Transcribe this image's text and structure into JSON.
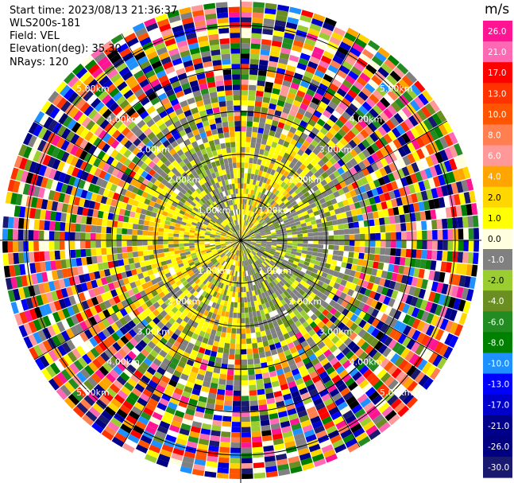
{
  "header": {
    "start_time": "Start time: 2023/08/13 21:36:37",
    "instrument": "WLS200s-181",
    "field": "Field: VEL",
    "elevation": "Elevation(deg): 35.30",
    "nrays": "NRays: 120"
  },
  "chart_data": {
    "type": "heatmap",
    "subtype": "ppi-polar",
    "field": "VEL",
    "units": "m/s",
    "nrays": 120,
    "range_rings_km": [
      1.0,
      2.0,
      3.0,
      4.0,
      5.0
    ],
    "ring_labels": [
      "1.00km",
      "2.00km",
      "3.00km",
      "4.00km",
      "5.00km"
    ],
    "max_range_km": 5.0,
    "colorbar": {
      "label": "m/s",
      "ticks": [
        "26.0",
        "21.0",
        "17.0",
        "13.0",
        "10.0",
        "8.0",
        "6.0",
        "4.0",
        "2.0",
        "1.0",
        "0.0",
        "-1.0",
        "-2.0",
        "-4.0",
        "-6.0",
        "-8.0",
        "-10.0",
        "-13.0",
        "-17.0",
        "-21.0",
        "-26.0",
        "-30.0"
      ],
      "colors": [
        "#ff1493",
        "#ff69b4",
        "#ff0000",
        "#ff3300",
        "#ff5500",
        "#ff7f50",
        "#ff9999",
        "#ffa500",
        "#ffd700",
        "#ffff00",
        "#ffffe0",
        "#808080",
        "#9acd32",
        "#6b8e23",
        "#228b22",
        "#008000",
        "#1e90ff",
        "#0000ff",
        "#0000cd",
        "#00008b",
        "#000080",
        "#191970"
      ]
    }
  }
}
